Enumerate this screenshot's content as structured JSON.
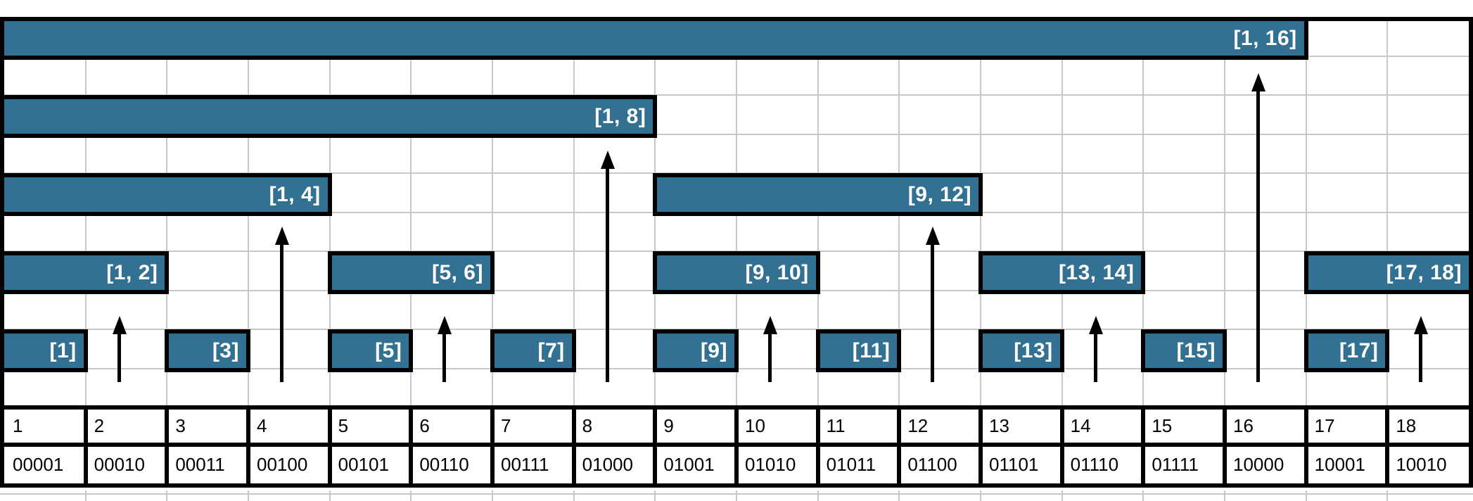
{
  "diagram": {
    "description": "Fenwick tree (binary indexed tree) interval coverage diagram",
    "colors": {
      "bar_fill": "#327191",
      "bar_border": "#000000",
      "bar_label_text": "#ffffff",
      "grid_line": "#c8c8c8",
      "table_line": "#000000",
      "table_text": "#000000",
      "background": "#ffffff"
    },
    "bars": [
      {
        "label": "[1, 16]",
        "start": 1,
        "end": 16,
        "span": 16
      },
      {
        "label": "[1, 8]",
        "start": 1,
        "end": 8,
        "span": 8
      },
      {
        "label": "[1, 4]",
        "start": 1,
        "end": 4,
        "span": 4
      },
      {
        "label": "[9, 12]",
        "start": 9,
        "end": 12,
        "span": 4
      },
      {
        "label": "[1, 2]",
        "start": 1,
        "end": 2,
        "span": 2
      },
      {
        "label": "[5, 6]",
        "start": 5,
        "end": 6,
        "span": 2
      },
      {
        "label": "[9, 10]",
        "start": 9,
        "end": 10,
        "span": 2
      },
      {
        "label": "[13, 14]",
        "start": 13,
        "end": 14,
        "span": 2
      },
      {
        "label": "[17, 18]",
        "start": 17,
        "end": 18,
        "span": 2
      },
      {
        "label": "[1]",
        "start": 1,
        "end": 1,
        "span": 1
      },
      {
        "label": "[3]",
        "start": 3,
        "end": 3,
        "span": 1
      },
      {
        "label": "[5]",
        "start": 5,
        "end": 5,
        "span": 1
      },
      {
        "label": "[7]",
        "start": 7,
        "end": 7,
        "span": 1
      },
      {
        "label": "[9]",
        "start": 9,
        "end": 9,
        "span": 1
      },
      {
        "label": "[11]",
        "start": 11,
        "end": 11,
        "span": 1
      },
      {
        "label": "[13]",
        "start": 13,
        "end": 13,
        "span": 1
      },
      {
        "label": "[15]",
        "start": 15,
        "end": 15,
        "span": 1
      },
      {
        "label": "[17]",
        "start": 17,
        "end": 17,
        "span": 1
      }
    ],
    "arrows": [
      {
        "column": 2,
        "target_span": 2
      },
      {
        "column": 4,
        "target_span": 4
      },
      {
        "column": 6,
        "target_span": 2
      },
      {
        "column": 8,
        "target_span": 8
      },
      {
        "column": 10,
        "target_span": 2
      },
      {
        "column": 12,
        "target_span": 4
      },
      {
        "column": 14,
        "target_span": 2
      },
      {
        "column": 16,
        "target_span": 16
      },
      {
        "column": 18,
        "target_span": 2
      }
    ],
    "index_row": [
      "1",
      "2",
      "3",
      "4",
      "5",
      "6",
      "7",
      "8",
      "9",
      "10",
      "11",
      "12",
      "13",
      "14",
      "15",
      "16",
      "17",
      "18"
    ],
    "binary_row": [
      "00001",
      "00010",
      "00011",
      "00100",
      "00101",
      "00110",
      "00111",
      "01000",
      "01001",
      "01010",
      "01011",
      "01100",
      "01101",
      "01110",
      "01111",
      "10000",
      "10001",
      "10010"
    ]
  }
}
